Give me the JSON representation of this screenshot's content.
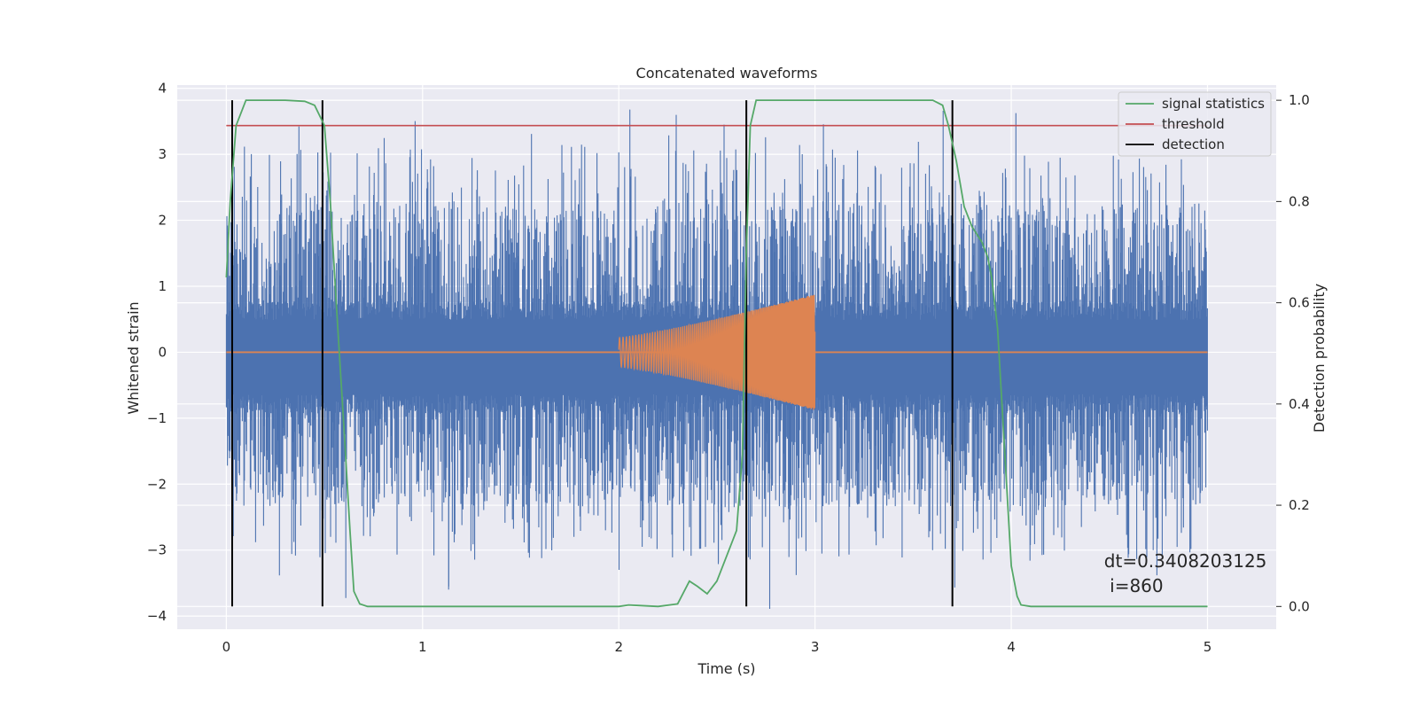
{
  "chart_data": {
    "type": "line",
    "title": "Concatenated waveforms",
    "xlabel": "Time (s)",
    "ylabel": "Whitened strain",
    "ylabel_right": "Detection probability",
    "xlim": [
      -0.25,
      5.35
    ],
    "ylim": [
      -4.2,
      4.05
    ],
    "ylim_right": [
      -0.045,
      1.03
    ],
    "xticks": [
      0,
      1,
      2,
      3,
      4,
      5
    ],
    "yticks": [
      -4,
      -3,
      -2,
      -1,
      0,
      1,
      2,
      3,
      4
    ],
    "yticks_right": [
      0.0,
      0.2,
      0.4,
      0.6,
      0.8,
      1.0
    ],
    "xtick_labels": [
      "0",
      "1",
      "2",
      "3",
      "4",
      "5"
    ],
    "ytick_labels": [
      "−4",
      "−3",
      "−2",
      "−1",
      "0",
      "1",
      "2",
      "3",
      "4"
    ],
    "ytick_right_labels": [
      "0.0",
      "0.2",
      "0.4",
      "0.6",
      "0.8",
      "1.0"
    ],
    "grid": true,
    "legend": "top-right",
    "colors": {
      "strain": "#4c72b0",
      "template": "#dd8452",
      "signal": "#55a868",
      "threshold": "#c44e52",
      "detection": "#000000",
      "background": "#eaeaf2",
      "grid": "#ffffff"
    },
    "series": [
      {
        "name": "",
        "axis": "left",
        "kind": "noise",
        "x_range": [
          0,
          5
        ],
        "bulk_range": [
          -0.85,
          0.65
        ],
        "peak_range": [
          -3.9,
          3.68
        ]
      },
      {
        "name": "",
        "axis": "left",
        "kind": "chirp",
        "x_range": [
          2.0,
          3.0
        ],
        "amplitude_start": 0.22,
        "amplitude_end": 0.88
      },
      {
        "name": "signal statistics",
        "axis": "right",
        "x": [
          0.0,
          0.02,
          0.05,
          0.1,
          0.15,
          0.3,
          0.4,
          0.45,
          0.5,
          0.53,
          0.56,
          0.6,
          0.63,
          0.65,
          0.68,
          0.72,
          0.8,
          1.5,
          2.0,
          2.05,
          2.1,
          2.2,
          2.3,
          2.36,
          2.4,
          2.45,
          2.5,
          2.55,
          2.6,
          2.63,
          2.65,
          2.67,
          2.7,
          2.75,
          3.6,
          3.65,
          3.68,
          3.72,
          3.76,
          3.8,
          3.85,
          3.88,
          3.9,
          3.93,
          3.96,
          4.0,
          4.03,
          4.05,
          4.1,
          5.0
        ],
        "y": [
          0.65,
          0.8,
          0.95,
          1.0,
          1.0,
          1.0,
          0.998,
          0.99,
          0.95,
          0.8,
          0.6,
          0.35,
          0.15,
          0.03,
          0.005,
          0.0,
          0.0,
          0.0,
          0.0,
          0.003,
          0.002,
          0.0,
          0.005,
          0.05,
          0.04,
          0.025,
          0.05,
          0.1,
          0.15,
          0.3,
          0.7,
          0.95,
          1.0,
          1.0,
          1.0,
          0.99,
          0.95,
          0.88,
          0.79,
          0.75,
          0.72,
          0.69,
          0.65,
          0.55,
          0.35,
          0.08,
          0.02,
          0.003,
          0.0,
          0.0
        ]
      },
      {
        "name": "threshold",
        "axis": "right",
        "x": [
          0.0,
          5.0
        ],
        "y": [
          0.95,
          0.95
        ]
      }
    ],
    "detections": {
      "name": "detection",
      "x": [
        0.03,
        0.49,
        2.65,
        3.7
      ],
      "y_range": [
        0.0,
        1.0
      ]
    },
    "annotation": {
      "x": 4.5,
      "y": 0.1,
      "line1": "dt=0.3408203125",
      "line2": " i=860"
    }
  }
}
